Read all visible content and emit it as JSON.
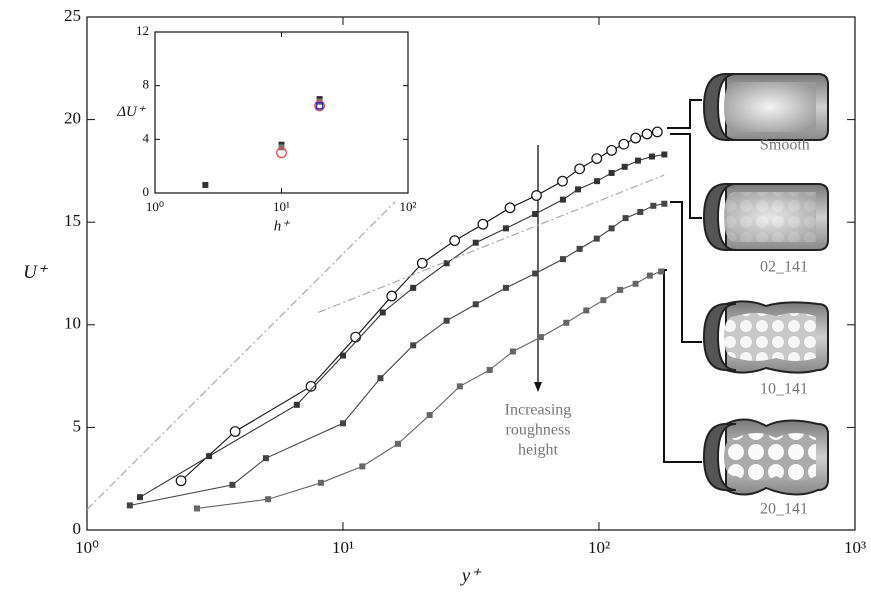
{
  "chart_data": [
    {
      "type": "line",
      "xlabel": "y⁺",
      "ylabel": "U⁺",
      "xscale": "log",
      "xlim": [
        1,
        1000
      ],
      "xticks": [
        {
          "value": 1,
          "label": "10⁰"
        },
        {
          "value": 10,
          "label": "10¹"
        },
        {
          "value": 100,
          "label": "10²"
        },
        {
          "value": 1000,
          "label": "10³"
        }
      ],
      "ylim": [
        0,
        25
      ],
      "yticks": [
        0,
        5,
        10,
        15,
        20,
        25
      ],
      "annotation": [
        "Increasing",
        "roughness",
        "height"
      ],
      "series": [
        {
          "name": "Smooth",
          "color": "#111111",
          "marker": "circle",
          "x": [
            2.33,
            3.79,
            7.5,
            11.2,
            15.5,
            20.4,
            27.3,
            35.2,
            44.9,
            57,
            72,
            84,
            98,
            112,
            125,
            139,
            154,
            169
          ],
          "values": [
            2.4,
            4.8,
            7.0,
            9.4,
            11.4,
            13.0,
            14.1,
            14.9,
            15.7,
            16.3,
            17.0,
            17.6,
            18.1,
            18.5,
            18.8,
            19.1,
            19.3,
            19.4
          ]
        },
        {
          "name": "02_141",
          "color": "#333333",
          "marker": "square",
          "x": [
            1.61,
            3.0,
            6.6,
            10.0,
            14.3,
            18.8,
            25.4,
            33.0,
            43.3,
            56.3,
            72.3,
            82.8,
            98.3,
            112,
            126,
            142,
            161,
            180
          ],
          "values": [
            1.6,
            3.6,
            6.1,
            8.5,
            10.6,
            11.8,
            13.0,
            14.0,
            14.7,
            15.4,
            16.1,
            16.6,
            17.0,
            17.4,
            17.7,
            18.0,
            18.2,
            18.3
          ]
        },
        {
          "name": "10_141",
          "color": "#444444",
          "marker": "square",
          "x": [
            1.47,
            3.7,
            5.0,
            10.0,
            14.0,
            18.8,
            25.4,
            33.0,
            43.3,
            56.3,
            72.3,
            84,
            98,
            112,
            127,
            145,
            163,
            180
          ],
          "values": [
            1.2,
            2.2,
            3.5,
            5.2,
            7.4,
            9.0,
            10.2,
            11.0,
            11.8,
            12.5,
            13.2,
            13.7,
            14.2,
            14.7,
            15.2,
            15.5,
            15.8,
            15.9
          ]
        },
        {
          "name": "20_141",
          "color": "#666666",
          "marker": "square",
          "x": [
            2.69,
            5.1,
            8.2,
            11.9,
            16.4,
            21.8,
            28.6,
            37.4,
            46.1,
            59.3,
            74.5,
            89.2,
            104,
            121,
            139,
            158,
            175
          ],
          "values": [
            1.05,
            1.5,
            2.3,
            3.1,
            4.2,
            5.6,
            7.0,
            7.8,
            8.7,
            9.4,
            10.1,
            10.7,
            11.2,
            11.7,
            12.0,
            12.4,
            12.6
          ]
        },
        {
          "color": "#aaaaaa",
          "style": "dash-dot",
          "x": [
            1,
            16
          ],
          "values": [
            1,
            16
          ]
        },
        {
          "color": "#aaaaaa",
          "style": "dash-dot",
          "x": [
            8,
            180
          ],
          "values": [
            10.6,
            17.3
          ]
        }
      ]
    },
    {
      "type": "scatter",
      "xlabel": "h⁺",
      "ylabel": "ΔU⁺",
      "xscale": "log",
      "xlim": [
        1,
        100
      ],
      "xticks": [
        {
          "value": 1,
          "label": "10⁰"
        },
        {
          "value": 10,
          "label": "10¹"
        },
        {
          "value": 100,
          "label": "10²"
        }
      ],
      "ylim": [
        0,
        12
      ],
      "yticks": [
        0,
        4,
        8,
        12
      ],
      "series": [
        {
          "color": "#333333",
          "marker": "square",
          "x": [
            2.5,
            10,
            20
          ],
          "values": [
            0.6,
            3.6,
            7.0
          ]
        },
        {
          "color": "#777777",
          "marker": "square",
          "x": [
            10,
            20
          ],
          "values": [
            3.4,
            6.8
          ]
        },
        {
          "color": "#e04040",
          "marker": "circle",
          "x": [
            10,
            20
          ],
          "values": [
            3.0,
            6.5
          ]
        },
        {
          "color": "#3030c0",
          "marker": "square-open",
          "x": [
            20
          ],
          "values": [
            6.5
          ]
        }
      ]
    }
  ]
}
